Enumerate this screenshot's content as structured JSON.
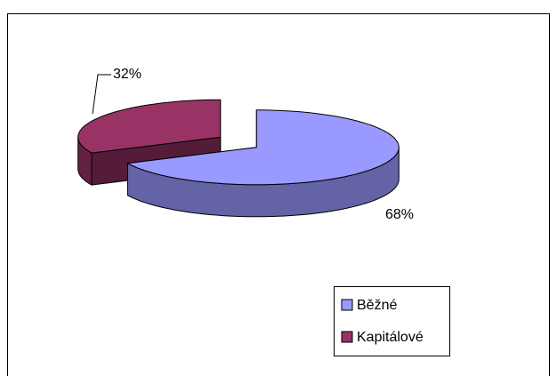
{
  "chart_data": {
    "type": "pie3d",
    "categories": [
      "Běžné",
      "Kapitálové"
    ],
    "values": [
      68,
      32
    ],
    "value_labels": [
      "68%",
      "32%"
    ],
    "colors": [
      "#9999ff",
      "#993366"
    ],
    "legend": "bottom-right"
  }
}
